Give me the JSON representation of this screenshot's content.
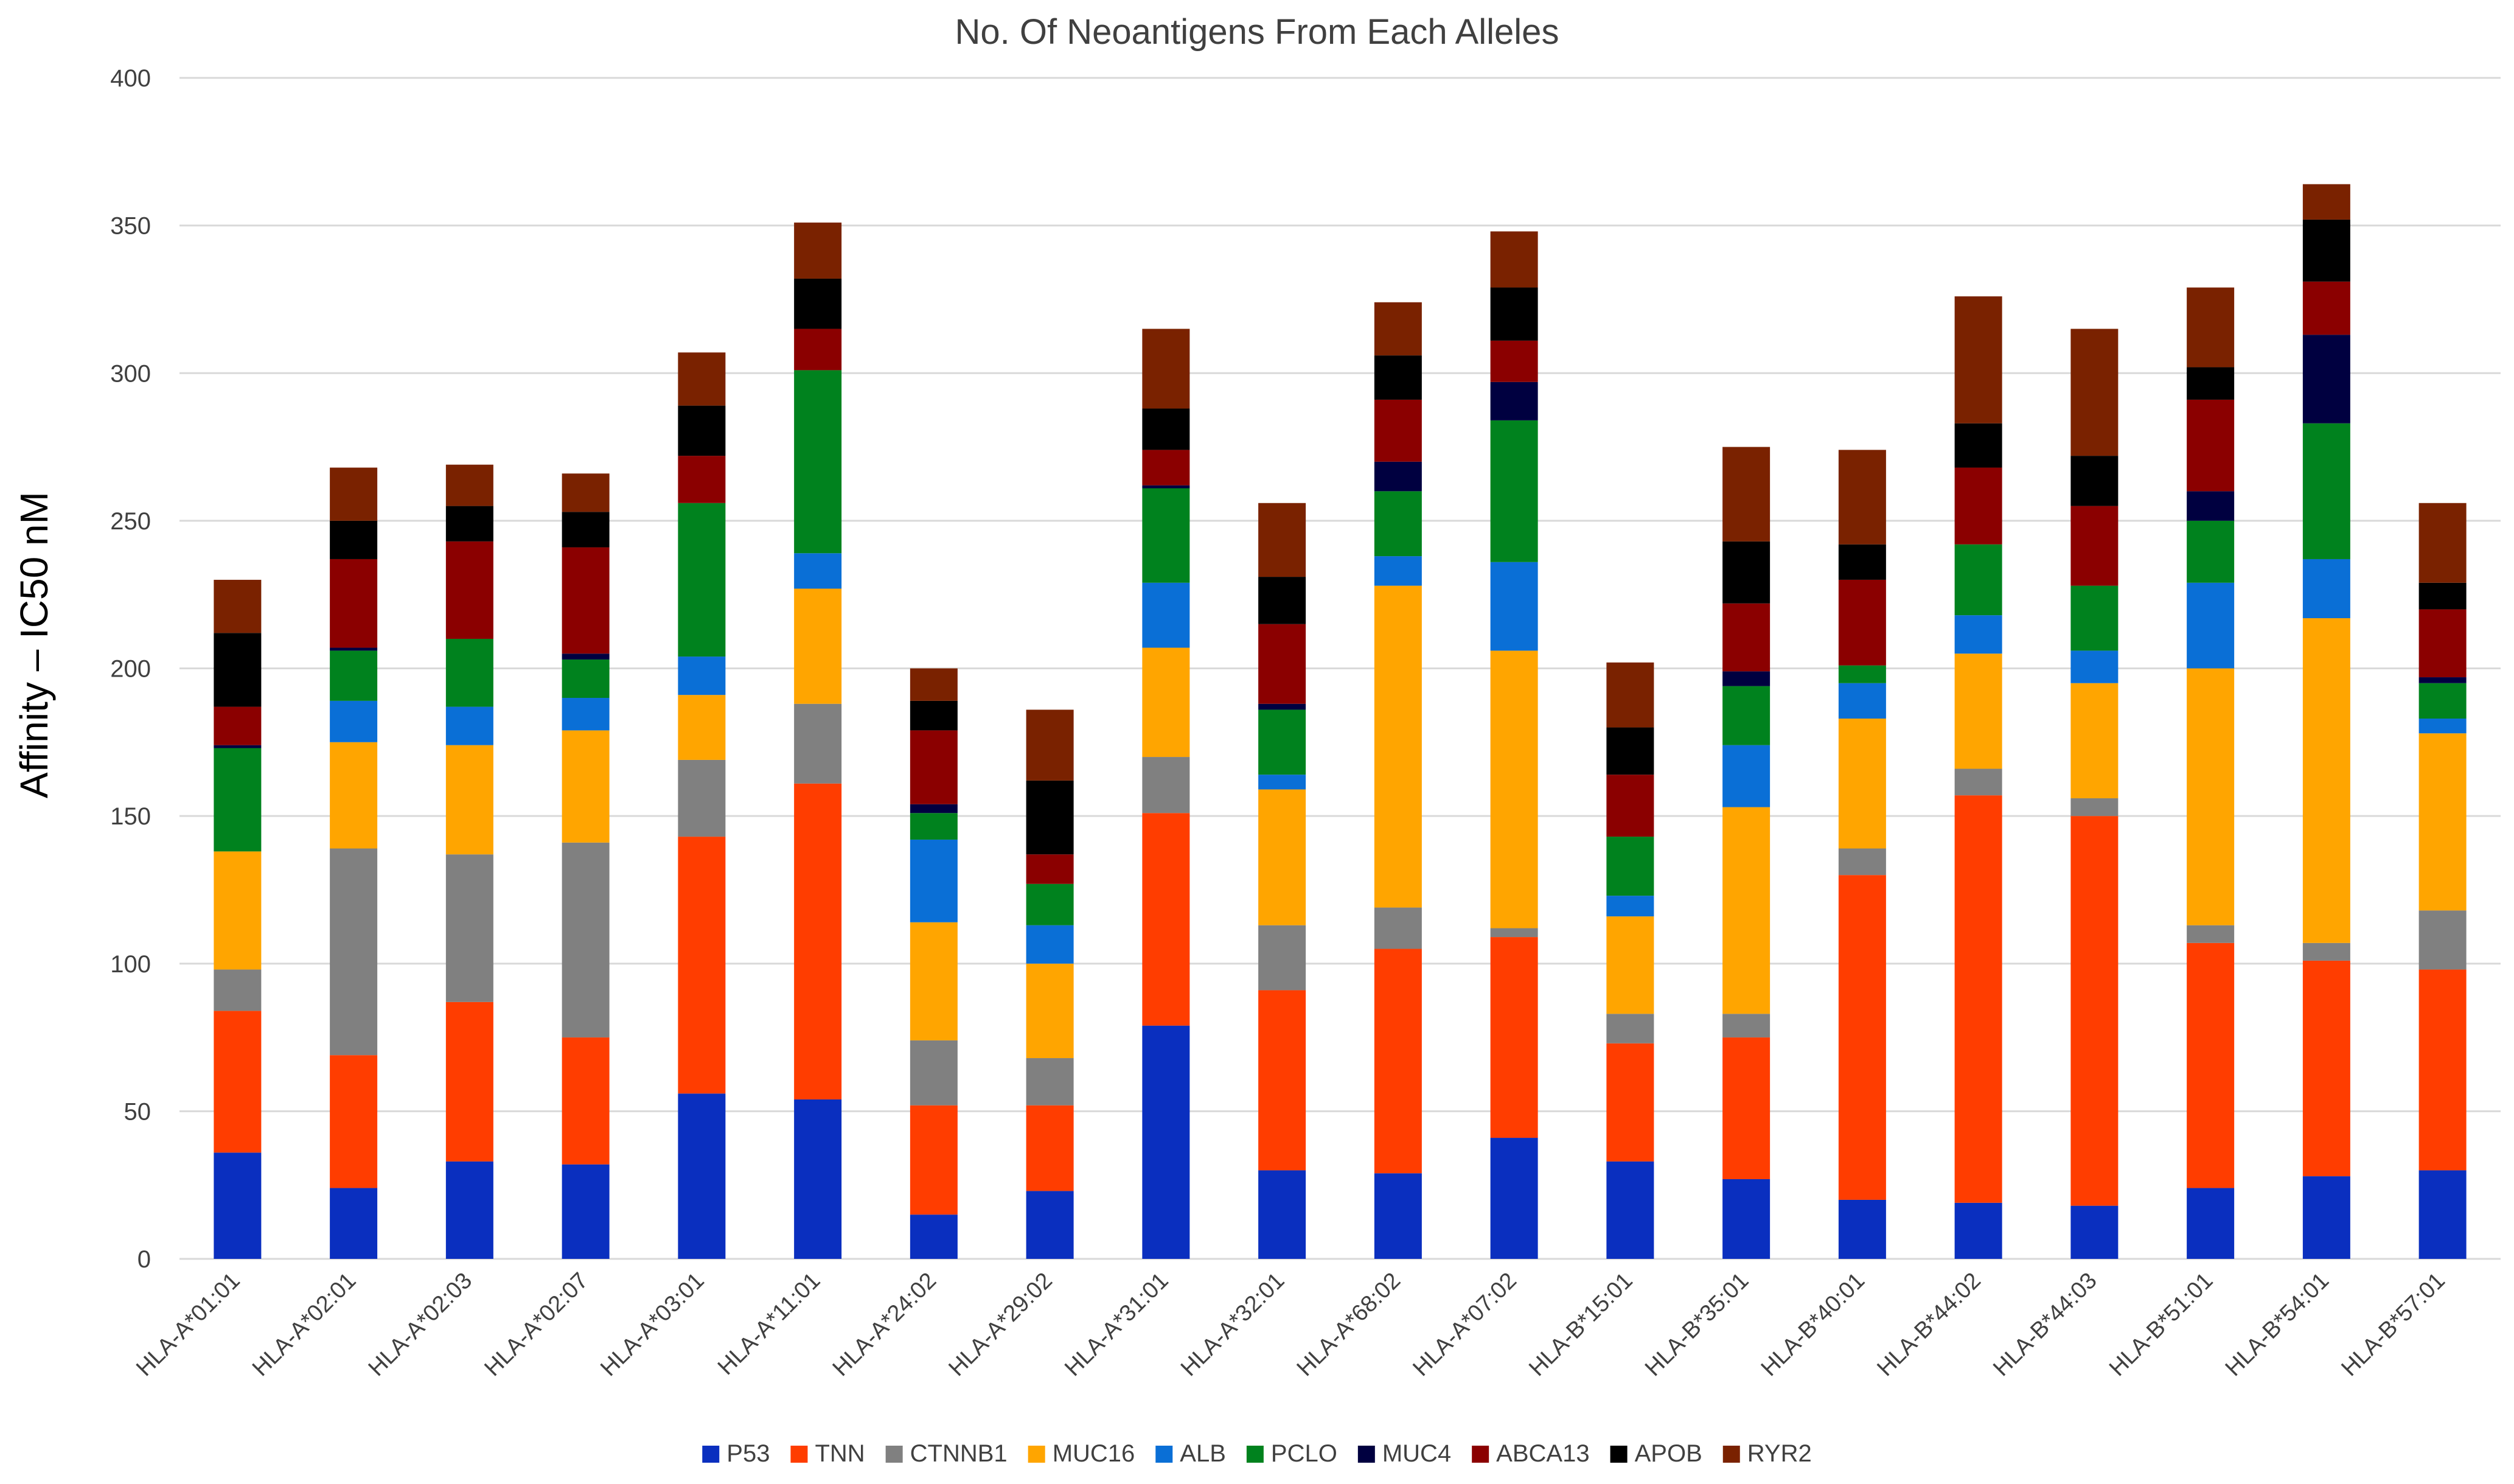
{
  "chart_data": {
    "type": "bar",
    "stacked": true,
    "title": "No. Of Neoantigens From Each Alleles",
    "xlabel": "",
    "ylabel": "Affinity – IC50 nM",
    "ylim": [
      0,
      400
    ],
    "yticks": [
      0,
      50,
      100,
      150,
      200,
      250,
      300,
      350,
      400
    ],
    "grid": true,
    "legend_position": "bottom",
    "categories": [
      "HLA-A*01:01",
      "HLA-A*02:01",
      "HLA-A*02:03",
      "HLA-A*02:07",
      "HLA-A*03:01",
      "HLA-A*11:01",
      "HLA-A*24:02",
      "HLA-A*29:02",
      "HLA-A*31:01",
      "HLA-A*32:01",
      "HLA-A*68:02",
      "HLA-A*07:02",
      "HLA-B*15:01",
      "HLA-B*35:01",
      "HLA-B*40:01",
      "HLA-B*44:02",
      "HLA-B*44:03",
      "HLA-B*51:01",
      "HLA-B*54:01",
      "HLA-B*57:01"
    ],
    "series": [
      {
        "name": "P53",
        "color": "#0a2fbf",
        "values": [
          36,
          24,
          33,
          32,
          56,
          54,
          15,
          23,
          79,
          30,
          29,
          41,
          33,
          27,
          20,
          19,
          18,
          24,
          28,
          30
        ]
      },
      {
        "name": "TNN",
        "color": "#ff3d00",
        "values": [
          48,
          45,
          54,
          43,
          87,
          107,
          37,
          29,
          72,
          61,
          76,
          68,
          40,
          48,
          110,
          138,
          132,
          83,
          73,
          68
        ]
      },
      {
        "name": "CTNNB1",
        "color": "#808080",
        "values": [
          14,
          70,
          50,
          66,
          26,
          27,
          22,
          16,
          19,
          22,
          14,
          3,
          10,
          8,
          9,
          9,
          6,
          6,
          6,
          20
        ]
      },
      {
        "name": "MUC16",
        "color": "#ffa500",
        "values": [
          40,
          36,
          37,
          38,
          22,
          39,
          40,
          32,
          37,
          46,
          109,
          94,
          33,
          70,
          44,
          39,
          39,
          87,
          110,
          60
        ]
      },
      {
        "name": "ALB",
        "color": "#0a6fd6",
        "values": [
          0,
          14,
          13,
          11,
          13,
          12,
          28,
          13,
          22,
          5,
          10,
          30,
          7,
          21,
          12,
          13,
          11,
          29,
          20,
          5
        ]
      },
      {
        "name": "PCLO",
        "color": "#00821e",
        "values": [
          35,
          17,
          23,
          13,
          52,
          62,
          9,
          14,
          32,
          22,
          22,
          48,
          20,
          20,
          6,
          24,
          22,
          21,
          46,
          12
        ]
      },
      {
        "name": "MUC4",
        "color": "#000040",
        "values": [
          1,
          1,
          0,
          2,
          0,
          0,
          3,
          0,
          1,
          2,
          10,
          13,
          0,
          5,
          0,
          0,
          0,
          10,
          30,
          2
        ]
      },
      {
        "name": "ABCA13",
        "color": "#8b0000",
        "values": [
          13,
          30,
          33,
          36,
          16,
          14,
          25,
          10,
          12,
          27,
          21,
          14,
          21,
          23,
          29,
          26,
          27,
          31,
          18,
          23
        ]
      },
      {
        "name": "APOB",
        "color": "#000000",
        "values": [
          25,
          13,
          12,
          12,
          17,
          17,
          10,
          25,
          14,
          16,
          15,
          18,
          16,
          21,
          12,
          15,
          17,
          11,
          21,
          9
        ]
      },
      {
        "name": "RYR2",
        "color": "#7a2200",
        "values": [
          18,
          18,
          14,
          13,
          18,
          19,
          11,
          24,
          27,
          25,
          18,
          19,
          22,
          32,
          32,
          43,
          43,
          27,
          12,
          27
        ]
      }
    ]
  }
}
